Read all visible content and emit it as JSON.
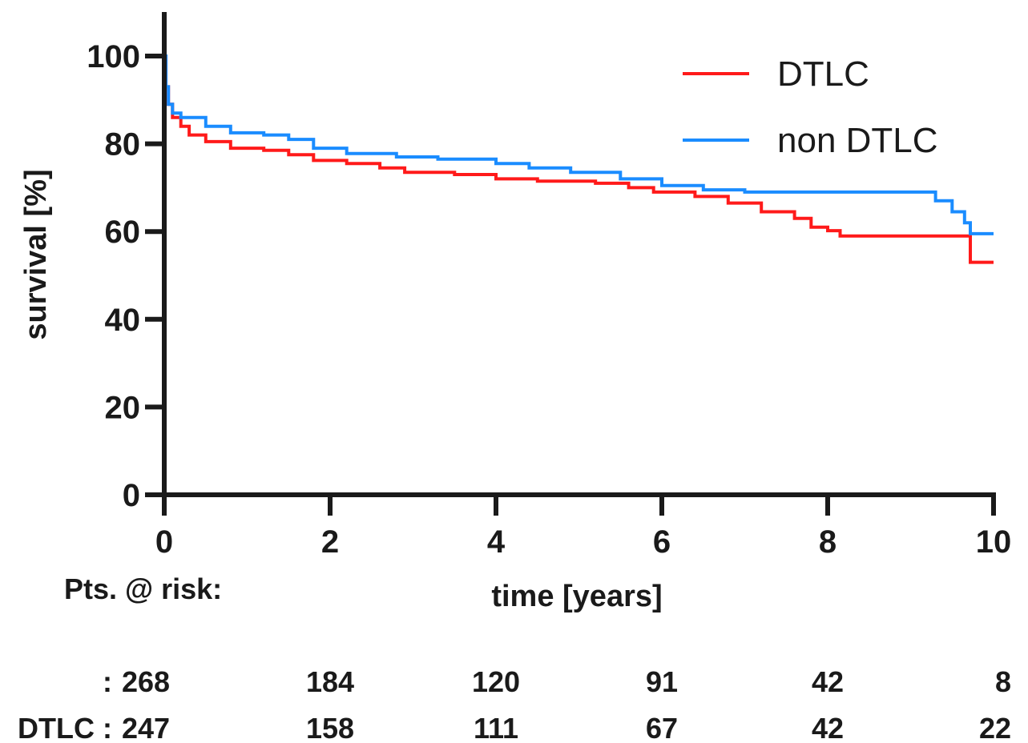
{
  "chart_data": {
    "type": "line",
    "ylabel": "survival [%]",
    "xlabel": "time [years]",
    "xlim": [
      0,
      10
    ],
    "ylim": [
      0,
      100
    ],
    "x_ticks": [
      0,
      2,
      4,
      6,
      8,
      10
    ],
    "y_ticks": [
      0,
      20,
      40,
      60,
      80,
      100
    ],
    "legend_position": "top-right",
    "series": [
      {
        "name": "DTLC",
        "color": "#ff1a1a",
        "points": [
          [
            0,
            100
          ],
          [
            0.02,
            93
          ],
          [
            0.05,
            89
          ],
          [
            0.1,
            86
          ],
          [
            0.2,
            84
          ],
          [
            0.3,
            82
          ],
          [
            0.5,
            80.5
          ],
          [
            0.8,
            79
          ],
          [
            1.2,
            78.5
          ],
          [
            1.5,
            77.5
          ],
          [
            1.8,
            76.2
          ],
          [
            2.2,
            75.5
          ],
          [
            2.6,
            74.5
          ],
          [
            2.9,
            73.5
          ],
          [
            3.5,
            73
          ],
          [
            4.0,
            72
          ],
          [
            4.5,
            71.5
          ],
          [
            5.2,
            71
          ],
          [
            5.6,
            70
          ],
          [
            5.9,
            69
          ],
          [
            6.4,
            68
          ],
          [
            6.8,
            66.5
          ],
          [
            7.2,
            64.5
          ],
          [
            7.6,
            63
          ],
          [
            7.8,
            61
          ],
          [
            8.0,
            60.2
          ],
          [
            8.15,
            59
          ],
          [
            9.0,
            59
          ],
          [
            9.68,
            59
          ],
          [
            9.72,
            53
          ],
          [
            10.0,
            53
          ]
        ]
      },
      {
        "name": "non DTLC",
        "color": "#1a8cff",
        "points": [
          [
            0,
            100
          ],
          [
            0.02,
            93
          ],
          [
            0.05,
            89
          ],
          [
            0.1,
            87
          ],
          [
            0.2,
            86
          ],
          [
            0.5,
            84
          ],
          [
            0.8,
            82.5
          ],
          [
            1.2,
            82
          ],
          [
            1.5,
            81
          ],
          [
            1.8,
            79
          ],
          [
            2.2,
            77.8
          ],
          [
            2.8,
            77
          ],
          [
            3.3,
            76.5
          ],
          [
            4.0,
            75.5
          ],
          [
            4.4,
            74.5
          ],
          [
            4.9,
            73.5
          ],
          [
            5.5,
            72
          ],
          [
            6.0,
            70.5
          ],
          [
            6.5,
            69.5
          ],
          [
            7.0,
            69
          ],
          [
            7.8,
            69
          ],
          [
            8.5,
            69
          ],
          [
            9.1,
            69
          ],
          [
            9.3,
            67
          ],
          [
            9.5,
            64.5
          ],
          [
            9.65,
            62
          ],
          [
            9.72,
            59.5
          ],
          [
            10.0,
            59.5
          ]
        ]
      }
    ],
    "at_risk": {
      "label": "Pts. @ risk:",
      "rows": [
        {
          "label": ":",
          "values": [
            "268",
            "184",
            "120",
            "91",
            "42",
            "8"
          ]
        },
        {
          "label": "DTLC :",
          "values": [
            "247",
            "158",
            "111",
            "67",
            "42",
            "22"
          ]
        }
      ]
    }
  }
}
